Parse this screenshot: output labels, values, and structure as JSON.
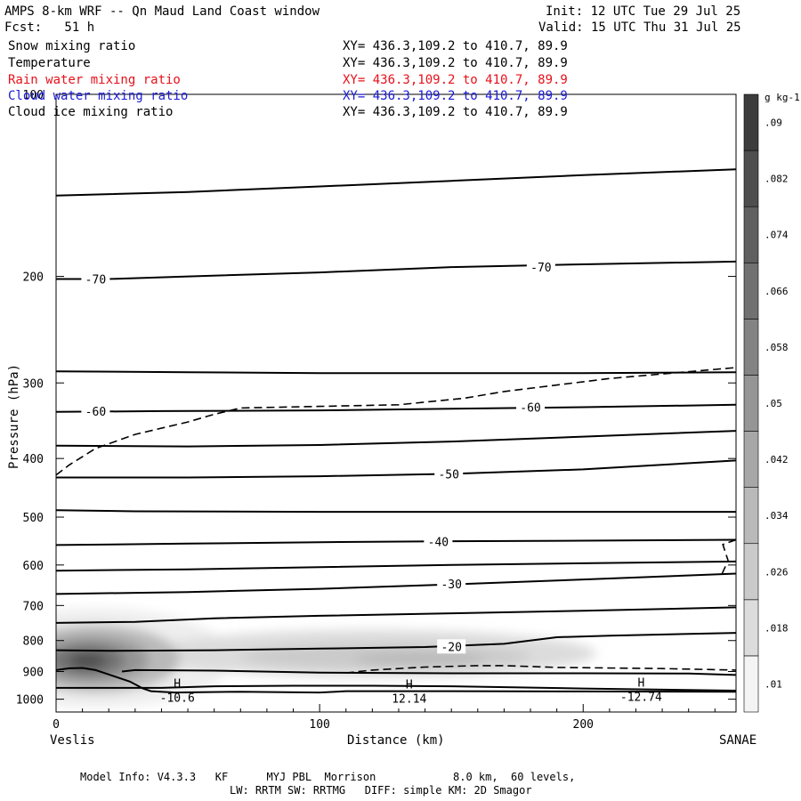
{
  "header": {
    "title": "AMPS 8-km WRF -- Qn Maud Land Coast window",
    "init": "Init: 12 UTC Tue 29 Jul 25",
    "forecast": "Fcst:   51 h",
    "valid": "Valid: 15 UTC Thu 31 Jul 25"
  },
  "fields": [
    {
      "name": "Snow mixing ratio",
      "xy": "XY= 436.3,109.2 to 410.7, 89.9",
      "color": "#000000"
    },
    {
      "name": "Temperature",
      "xy": "XY= 436.3,109.2 to 410.7, 89.9",
      "color": "#000000"
    },
    {
      "name": "Rain water mixing ratio",
      "xy": "XY= 436.3,109.2 to 410.7, 89.9",
      "color": "#e8101a"
    },
    {
      "name": "Cloud water mixing ratio",
      "xy": "XY= 436.3,109.2 to 410.7, 89.9",
      "color": "#1a1ad8"
    },
    {
      "name": "Cloud ice mixing ratio",
      "xy": "XY= 436.3,109.2 to 410.7, 89.9",
      "color": "#000000"
    }
  ],
  "footer": {
    "line1": "Model Info: V4.3.3   KF      MYJ PBL  Morrison            8.0 km,  60 levels,",
    "line2": "LW: RRTM SW: RRTMG   DIFF: simple KM: 2D Smagor"
  },
  "chart_data": {
    "type": "cross-section contour",
    "xlabel": "Distance (km)",
    "ylabel": "Pressure (hPa)",
    "xlim": [
      0,
      258
    ],
    "ylim": [
      1050,
      100
    ],
    "xticks": [
      0,
      100,
      200
    ],
    "yticks": [
      100,
      200,
      300,
      400,
      500,
      600,
      700,
      800,
      900,
      1000
    ],
    "x_endpoints": {
      "left": "Veslis",
      "right": "SANAE"
    },
    "colorbar": {
      "unit": "g kg-1",
      "levels": [
        0.01,
        0.018,
        0.026,
        0.034,
        0.042,
        0.05,
        0.058,
        0.066,
        0.074,
        0.082,
        0.09
      ],
      "labels": [
        ".01",
        ".018",
        ".026",
        ".034",
        ".042",
        ".05",
        ".058",
        ".066",
        ".074",
        ".082",
        ".09"
      ]
    },
    "temperature_contours": [
      {
        "label": "-70",
        "points": [
          [
            0,
            202
          ],
          [
            20,
            202
          ],
          [
            50,
            200
          ],
          [
            100,
            197
          ],
          [
            150,
            193
          ],
          [
            200,
            191
          ],
          [
            258,
            189
          ]
        ],
        "label_at": [
          [
            15,
            202
          ],
          [
            184,
            193
          ]
        ]
      },
      {
        "label": "-60",
        "points": [
          [
            0,
            335
          ],
          [
            40,
            334
          ],
          [
            100,
            333
          ],
          [
            150,
            331
          ],
          [
            200,
            329
          ],
          [
            258,
            326
          ]
        ],
        "label_at": [
          [
            15,
            334
          ],
          [
            180,
            329
          ]
        ]
      },
      {
        "label": "-50",
        "points": [
          [
            0,
            430
          ],
          [
            50,
            430
          ],
          [
            100,
            428
          ],
          [
            150,
            424
          ],
          [
            200,
            417
          ],
          [
            258,
            403
          ]
        ],
        "label_at": [
          [
            149,
            424
          ]
        ]
      },
      {
        "label": "-40",
        "points": [
          [
            0,
            556
          ],
          [
            50,
            553
          ],
          [
            100,
            550
          ],
          [
            150,
            548
          ],
          [
            200,
            547
          ],
          [
            258,
            545
          ]
        ],
        "label_at": [
          [
            145,
            549
          ]
        ]
      },
      {
        "label": "-30",
        "points": [
          [
            0,
            670
          ],
          [
            50,
            665
          ],
          [
            100,
            657
          ],
          [
            150,
            646
          ],
          [
            200,
            634
          ],
          [
            258,
            620
          ]
        ],
        "label_at": [
          [
            150,
            645
          ]
        ]
      },
      {
        "label": "-20",
        "points": [
          [
            0,
            830
          ],
          [
            20,
            832
          ],
          [
            60,
            830
          ],
          [
            100,
            825
          ],
          [
            140,
            820
          ],
          [
            170,
            810
          ],
          [
            190,
            790
          ],
          [
            210,
            785
          ],
          [
            258,
            777
          ]
        ],
        "label_at": [
          [
            150,
            818
          ]
        ]
      },
      {
        "label": "",
        "points": [
          [
            0,
            147
          ],
          [
            50,
            145
          ],
          [
            100,
            142
          ],
          [
            150,
            139
          ],
          [
            200,
            136
          ],
          [
            258,
            133
          ]
        ],
        "label_at": []
      },
      {
        "label": "",
        "points": [
          [
            0,
            287
          ],
          [
            50,
            288
          ],
          [
            100,
            289
          ],
          [
            150,
            289
          ],
          [
            200,
            289
          ],
          [
            258,
            288
          ]
        ],
        "label_at": []
      },
      {
        "label": "",
        "points": [
          [
            0,
            381
          ],
          [
            50,
            382
          ],
          [
            100,
            380
          ],
          [
            150,
            375
          ],
          [
            200,
            368
          ],
          [
            258,
            360
          ]
        ],
        "label_at": []
      },
      {
        "label": "",
        "points": [
          [
            0,
            487
          ],
          [
            30,
            489
          ],
          [
            100,
            490
          ],
          [
            150,
            490
          ],
          [
            200,
            490
          ],
          [
            258,
            490
          ]
        ],
        "label_at": []
      },
      {
        "label": "",
        "points": [
          [
            0,
            613
          ],
          [
            50,
            610
          ],
          [
            100,
            605
          ],
          [
            150,
            600
          ],
          [
            200,
            596
          ],
          [
            258,
            592
          ]
        ],
        "label_at": []
      },
      {
        "label": "",
        "points": [
          [
            0,
            748
          ],
          [
            30,
            745
          ],
          [
            60,
            735
          ],
          [
            100,
            728
          ],
          [
            150,
            721
          ],
          [
            200,
            714
          ],
          [
            258,
            705
          ]
        ],
        "label_at": []
      },
      {
        "label": "",
        "points": [
          [
            25,
            900
          ],
          [
            30,
            895
          ],
          [
            60,
            897
          ],
          [
            100,
            904
          ],
          [
            150,
            906
          ],
          [
            200,
            906
          ],
          [
            240,
            907
          ],
          [
            258,
            912
          ]
        ],
        "label_at": []
      }
    ],
    "zero_isotherm": [
      [
        0,
        958
      ],
      [
        40,
        958
      ],
      [
        60,
        952
      ],
      [
        90,
        950
      ],
      [
        120,
        950
      ],
      [
        150,
        952
      ],
      [
        200,
        960
      ],
      [
        258,
        968
      ]
    ],
    "terrain": [
      [
        0,
        895
      ],
      [
        5,
        889
      ],
      [
        10,
        888
      ],
      [
        15,
        895
      ],
      [
        20,
        910
      ],
      [
        28,
        935
      ],
      [
        33,
        960
      ],
      [
        36,
        970
      ],
      [
        45,
        975
      ],
      [
        70,
        972
      ],
      [
        100,
        975
      ],
      [
        110,
        970
      ],
      [
        150,
        970
      ],
      [
        200,
        971
      ],
      [
        258,
        972
      ]
    ],
    "dashed_contours": [
      [
        [
          0,
          426
        ],
        [
          5,
          410
        ],
        [
          15,
          385
        ],
        [
          30,
          365
        ],
        [
          50,
          348
        ],
        [
          60,
          338
        ],
        [
          70,
          330
        ],
        [
          100,
          328
        ],
        [
          130,
          326
        ],
        [
          155,
          318
        ],
        [
          170,
          310
        ],
        [
          210,
          295
        ],
        [
          258,
          283
        ]
      ],
      [
        [
          110,
          905
        ],
        [
          120,
          895
        ],
        [
          140,
          885
        ],
        [
          160,
          880
        ],
        [
          170,
          880
        ],
        [
          190,
          886
        ],
        [
          230,
          890
        ],
        [
          258,
          895
        ]
      ],
      [
        [
          258,
          545
        ],
        [
          253,
          555
        ],
        [
          255,
          590
        ],
        [
          252,
          630
        ]
      ]
    ],
    "highs": [
      {
        "label": "H",
        "value": "-10.6",
        "x": 46,
        "p": 957
      },
      {
        "label": "H",
        "value": "12.14",
        "x": 134,
        "p": 960
      },
      {
        "label": "H",
        "value": "-12.74",
        "x": 222,
        "p": 953
      }
    ],
    "shaded_regions": [
      {
        "x": 15,
        "p": 855,
        "rx": 52,
        "rp": 160,
        "level": 0.01
      },
      {
        "x": 120,
        "p": 840,
        "rx": 85,
        "rp": 75,
        "level": 0.018
      },
      {
        "x": 125,
        "p": 850,
        "rx": 55,
        "rp": 40,
        "level": 0.026
      },
      {
        "x": 138,
        "p": 858,
        "rx": 25,
        "rp": 22,
        "level": 0.034
      },
      {
        "x": 15,
        "p": 858,
        "rx": 32,
        "rp": 110,
        "level": 0.034
      },
      {
        "x": 13,
        "p": 860,
        "rx": 22,
        "rp": 75,
        "level": 0.05
      },
      {
        "x": 12,
        "p": 862,
        "rx": 14,
        "rp": 50,
        "level": 0.066
      },
      {
        "x": 12,
        "p": 864,
        "rx": 7,
        "rp": 25,
        "level": 0.082
      }
    ]
  }
}
